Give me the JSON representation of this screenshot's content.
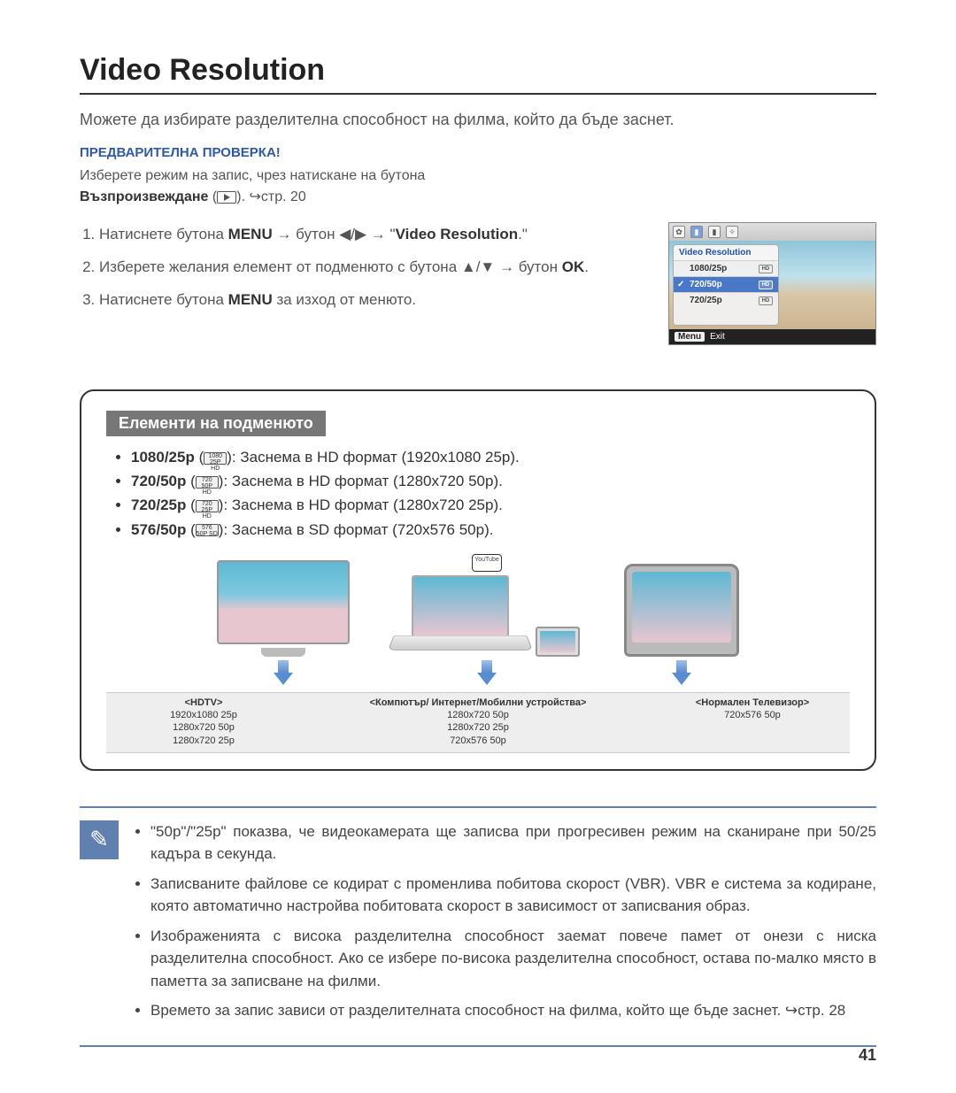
{
  "title": "Video Resolution",
  "intro": "Можете да избирате разделителна способност на филма, който да бъде заснет.",
  "precheck": {
    "heading": "ПРЕДВАРИТЕЛНА ПРОВЕРКА!",
    "line_a": "Изберете режим на запис, чрез натискане на бутона",
    "play_label": "Възпроизвеждане",
    "page_ref": "стр. 20"
  },
  "steps": {
    "s1_a": "Натиснете бутона ",
    "s1_menu": "MENU",
    "s1_b": " → бутон ◀/▶ → \"",
    "s1_target": "Video Resolution",
    "s1_c": ".\"",
    "s2_a": "Изберете желания елемент от подменюто с бутона ▲/▼ → бутон ",
    "s2_ok": "OK",
    "s2_b": ".",
    "s3_a": "Натиснете бутона ",
    "s3_menu": "MENU",
    "s3_b": " за изход от менюто."
  },
  "device_menu": {
    "title": "Video Resolution",
    "items": [
      "1080/25p",
      "720/50p",
      "720/25p"
    ],
    "selected_index": 1,
    "bottom_button": "Menu",
    "bottom_label": "Exit",
    "image_colors": {
      "sky": "#8fc5d9",
      "sand": "#cdb58f"
    }
  },
  "submenu": {
    "title": "Елементи на подменюто",
    "items": [
      {
        "label": "1080/25p",
        "desc": ": Заснема в HD формат (1920x1080 25p)."
      },
      {
        "label": "720/50p",
        "desc": ": Заснема в HD формат (1280x720 50p)."
      },
      {
        "label": "720/25p",
        "desc": ": Заснема в HD формат (1280x720 25p)."
      },
      {
        "label": "576/50p",
        "desc": ": Заснема в SD формат (720x576 50p)."
      }
    ]
  },
  "diagram": {
    "youtube_badge": "YouTube",
    "columns": [
      {
        "header": "<HDTV>",
        "lines": [
          "1920x1080 25p",
          "1280x720 50p",
          "1280x720 25p"
        ]
      },
      {
        "header": "<Компютър/ Интернет/Мобилни устройства>",
        "lines": [
          "1280x720 50p",
          "1280x720 25p",
          "720x576 50p"
        ]
      },
      {
        "header": "<Нормален Телевизор>",
        "lines": [
          "720x576 50p"
        ]
      }
    ],
    "arrow_color": "#5a8cd0"
  },
  "notes": [
    "\"50p\"/\"25p\" показва, че видеокамерата ще записва при прогресивен режим на сканиране при 50/25 кадъра в секунда.",
    "Записваните файлове се кодират с променлива побитова скорост (VBR). VBR е система за кодиране, която автоматично настройва побитовата скорост в зависимост от записвания образ.",
    "Изображенията с висока разделителна способност заемат повече памет от онези с ниска разделителна способност. Ако се избере по-висока разделителна способност, остава по-малко място в паметта за записване на филми.",
    "Времето за запис зависи от разделителната способност на филма, който ще бъде заснет. ↪стр. 28"
  ],
  "page_number": "41",
  "colors": {
    "rule": "#333333",
    "accent_blue": "#2d5aa8",
    "note_border": "#6080b0",
    "submenu_tab_bg": "#777777"
  }
}
